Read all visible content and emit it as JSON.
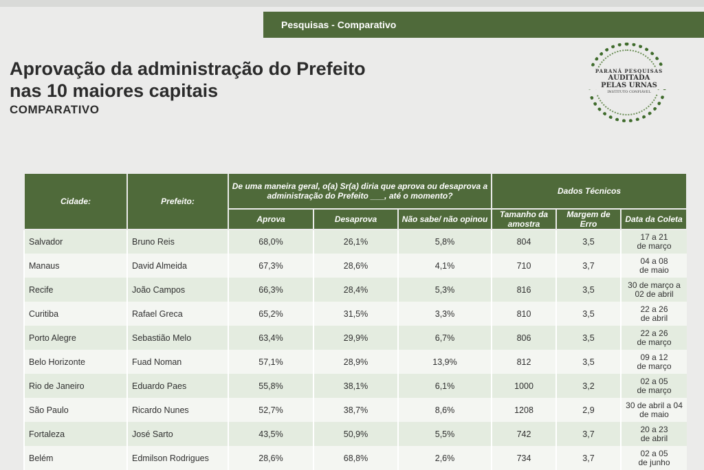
{
  "header": {
    "section_label": "Pesquisas - Comparativo"
  },
  "title": {
    "line1": "Aprovação da administração do Prefeito",
    "line2": "nas 10 maiores capitais",
    "subtitle": "COMPARATIVO"
  },
  "logo": {
    "line1": "PARANÁ PESQUISAS",
    "line2": "AUDITADA",
    "line3": "PELAS URNAS",
    "line4": "INSTITUTO CONFIÁVEL"
  },
  "table": {
    "col_city": "Cidade:",
    "col_mayor": "Prefeito:",
    "question": "De uma maneira geral, o(a) Sr(a) diria que aprova ou desaprova a administração do Prefeito ___, até o momento?",
    "technical": "Dados Técnicos",
    "col_approve": "Aprova",
    "col_disapprove": "Desaprova",
    "col_unsure": "Não sabe/ não opinou",
    "col_sample": "Tamanho da amostra",
    "col_margin": "Margem de Erro",
    "col_date": "Data da Coleta",
    "rows": [
      {
        "city": "Salvador",
        "mayor": "Bruno Reis",
        "approve": "68,0%",
        "disapprove": "26,1%",
        "unsure": "5,8%",
        "sample": "804",
        "margin": "3,5",
        "date_l1": "17 a 21",
        "date_l2": "de março"
      },
      {
        "city": "Manaus",
        "mayor": "David Almeida",
        "approve": "67,3%",
        "disapprove": "28,6%",
        "unsure": "4,1%",
        "sample": "710",
        "margin": "3,7",
        "date_l1": "04 a 08",
        "date_l2": "de maio"
      },
      {
        "city": "Recife",
        "mayor": "João Campos",
        "approve": "66,3%",
        "disapprove": "28,4%",
        "unsure": "5,3%",
        "sample": "816",
        "margin": "3,5",
        "date_l1": "30 de março a",
        "date_l2": "02 de abril"
      },
      {
        "city": "Curitiba",
        "mayor": "Rafael Greca",
        "approve": "65,2%",
        "disapprove": "31,5%",
        "unsure": "3,3%",
        "sample": "810",
        "margin": "3,5",
        "date_l1": "22 a 26",
        "date_l2": "de abril"
      },
      {
        "city": "Porto Alegre",
        "mayor": "Sebastião Melo",
        "approve": "63,4%",
        "disapprove": "29,9%",
        "unsure": "6,7%",
        "sample": "806",
        "margin": "3,5",
        "date_l1": "22 a 26",
        "date_l2": "de março"
      },
      {
        "city": "Belo Horizonte",
        "mayor": "Fuad Noman",
        "approve": "57,1%",
        "disapprove": "28,9%",
        "unsure": "13,9%",
        "sample": "812",
        "margin": "3,5",
        "date_l1": "09 a 12",
        "date_l2": "de março"
      },
      {
        "city": "Rio de Janeiro",
        "mayor": "Eduardo Paes",
        "approve": "55,8%",
        "disapprove": "38,1%",
        "unsure": "6,1%",
        "sample": "1000",
        "margin": "3,2",
        "date_l1": "02 a 05",
        "date_l2": "de março"
      },
      {
        "city": "São Paulo",
        "mayor": "Ricardo Nunes",
        "approve": "52,7%",
        "disapprove": "38,7%",
        "unsure": "8,6%",
        "sample": "1208",
        "margin": "2,9",
        "date_l1": "30 de abril a 04",
        "date_l2": "de maio"
      },
      {
        "city": "Fortaleza",
        "mayor": "José Sarto",
        "approve": "43,5%",
        "disapprove": "50,9%",
        "unsure": "5,5%",
        "sample": "742",
        "margin": "3,7",
        "date_l1": "20 a 23",
        "date_l2": "de abril"
      },
      {
        "city": "Belém",
        "mayor": "Edmilson Rodrigues",
        "approve": "28,6%",
        "disapprove": "68,8%",
        "unsure": "2,6%",
        "sample": "734",
        "margin": "3,7",
        "date_l1": "02 a 05",
        "date_l2": "de junho"
      }
    ]
  }
}
